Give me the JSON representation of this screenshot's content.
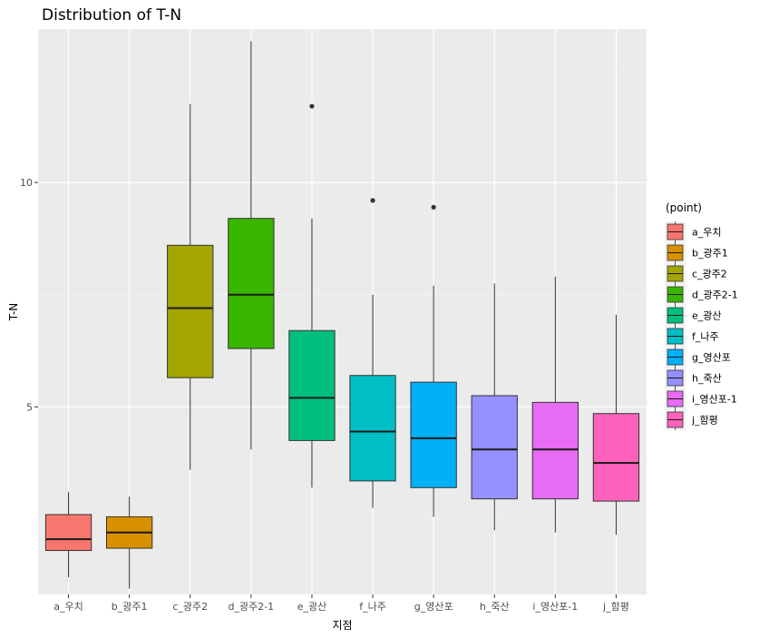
{
  "chart_data": {
    "type": "box",
    "title": "Distribution of T-N",
    "xlabel": "지점",
    "ylabel": "T-N",
    "ylim": [
      0.82,
      13.42
    ],
    "yticks": [
      5,
      10
    ],
    "ytick_labels": [
      "5",
      "10"
    ],
    "grid": true,
    "legend_title": "(point)",
    "legend_position": "right",
    "categories": [
      "a_우치",
      "b_광주1",
      "c_광주2",
      "d_광주2-1",
      "e_광산",
      "f_나주",
      "g_영산포",
      "h_죽산",
      "i_영산포-1",
      "j_함평"
    ],
    "colors": [
      "#F8766D",
      "#D89000",
      "#A3A500",
      "#39B600",
      "#00BF7D",
      "#00BFC4",
      "#00B0F6",
      "#9590FF",
      "#E76BF3",
      "#FF62BC"
    ],
    "boxes": [
      {
        "whisker_low": 1.2,
        "q1": 1.8,
        "median": 2.05,
        "q3": 2.6,
        "whisker_high": 3.1,
        "outliers": []
      },
      {
        "whisker_low": 0.95,
        "q1": 1.85,
        "median": 2.2,
        "q3": 2.55,
        "whisker_high": 3.0,
        "outliers": []
      },
      {
        "whisker_low": 3.6,
        "q1": 5.65,
        "median": 7.2,
        "q3": 8.6,
        "whisker_high": 11.75,
        "outliers": []
      },
      {
        "whisker_low": 4.05,
        "q1": 6.3,
        "median": 7.5,
        "q3": 9.2,
        "whisker_high": 13.15,
        "outliers": []
      },
      {
        "whisker_low": 3.2,
        "q1": 4.25,
        "median": 5.2,
        "q3": 6.7,
        "whisker_high": 9.2,
        "outliers": [
          11.7
        ]
      },
      {
        "whisker_low": 2.75,
        "q1": 3.35,
        "median": 4.45,
        "q3": 5.7,
        "whisker_high": 7.5,
        "outliers": [
          9.6
        ]
      },
      {
        "whisker_low": 2.55,
        "q1": 3.2,
        "median": 4.3,
        "q3": 5.55,
        "whisker_high": 7.7,
        "outliers": [
          9.45
        ]
      },
      {
        "whisker_low": 2.25,
        "q1": 2.95,
        "median": 4.05,
        "q3": 5.25,
        "whisker_high": 7.75,
        "outliers": []
      },
      {
        "whisker_low": 2.2,
        "q1": 2.95,
        "median": 4.05,
        "q3": 5.1,
        "whisker_high": 7.9,
        "outliers": []
      },
      {
        "whisker_low": 2.15,
        "q1": 2.9,
        "median": 3.75,
        "q3": 4.85,
        "whisker_high": 7.05,
        "outliers": []
      }
    ]
  }
}
